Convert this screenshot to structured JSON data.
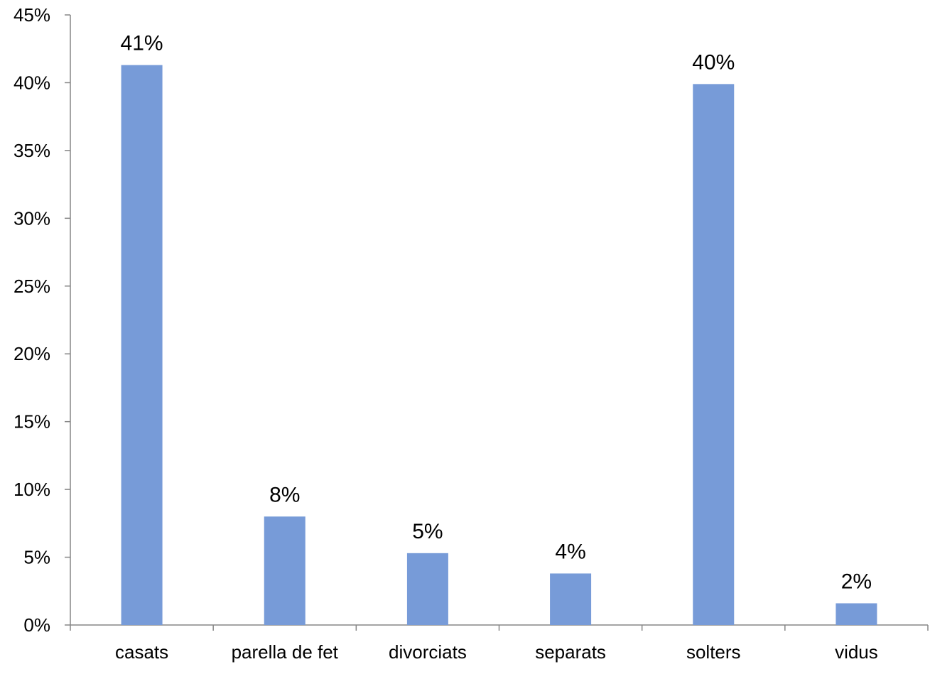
{
  "chart_data": {
    "type": "bar",
    "title": "",
    "xlabel": "",
    "ylabel": "",
    "categories": [
      "casats",
      "parella de fet",
      "divorciats",
      "separats",
      "solters",
      "vidus"
    ],
    "values": [
      41.3,
      8.0,
      5.3,
      3.8,
      39.9,
      1.6
    ],
    "data_labels": [
      "41%",
      "8%",
      "5%",
      "4%",
      "40%",
      "2%"
    ],
    "ylim": [
      0,
      45
    ],
    "yticks": [
      0,
      5,
      10,
      15,
      20,
      25,
      30,
      35,
      40,
      45
    ],
    "ytick_labels": [
      "0%",
      "5%",
      "10%",
      "15%",
      "20%",
      "25%",
      "30%",
      "35%",
      "40%",
      "45%"
    ],
    "grid": false,
    "legend": "none",
    "bar_color": "#779bd8",
    "axis_color": "#868686"
  }
}
